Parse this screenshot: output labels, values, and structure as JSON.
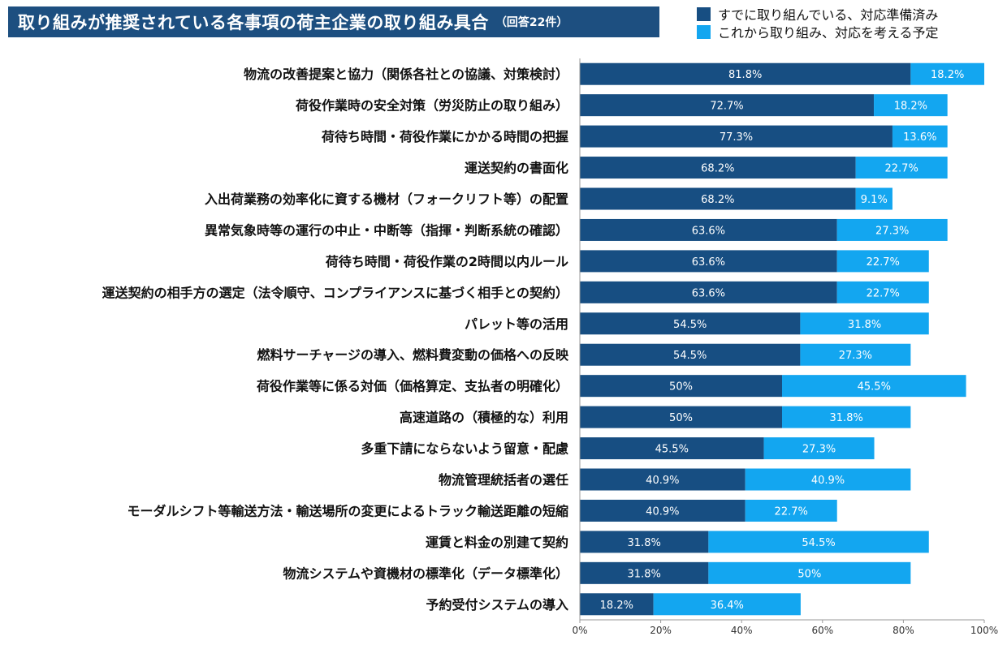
{
  "title": "取り組みが推奨されている各事項の荷主企業の取り組み具合",
  "subtitle": "（回答22件）",
  "colors": {
    "title_bg": "#1d4f80",
    "done": "#174e82",
    "planned": "#13a6f0",
    "axis": "#999999"
  },
  "legend": [
    {
      "label": "すでに取り組んでいる、対応準備済み",
      "color": "#174e82"
    },
    {
      "label": "これから取り組み、対応を考える予定",
      "color": "#13a6f0"
    }
  ],
  "chart_data": {
    "type": "bar",
    "orientation": "horizontal",
    "stacked": true,
    "categories": [
      "物流の改善提案と協力（関係各社との協議、対策検討）",
      "荷役作業時の安全対策（労災防止の取り組み）",
      "荷待ち時間・荷役作業にかかる時間の把握",
      "運送契約の書面化",
      "入出荷業務の効率化に資する機材（フォークリフト等）の配置",
      "異常気象時等の運行の中止・中断等（指揮・判断系統の確認）",
      "荷待ち時間・荷役作業の2時間以内ルール",
      "運送契約の相手方の選定（法令順守、コンプライアンスに基づく相手との契約）",
      "パレット等の活用",
      "燃料サーチャージの導入、燃料費変動の価格への反映",
      "荷役作業等に係る対価（価格算定、支払者の明確化）",
      "高速道路の（積極的な）利用",
      "多重下請にならないよう留意・配慮",
      "物流管理統括者の選任",
      "モーダルシフト等輸送方法・輸送場所の変更によるトラック輸送距離の短縮",
      "運賃と料金の別建て契約",
      "物流システムや資機材の標準化（データ標準化）",
      "予約受付システムの導入"
    ],
    "series": [
      {
        "name": "すでに取り組んでいる、対応準備済み",
        "values": [
          81.8,
          72.7,
          77.3,
          68.2,
          68.2,
          63.6,
          63.6,
          63.6,
          54.5,
          54.5,
          50,
          50,
          45.5,
          40.9,
          40.9,
          31.8,
          31.8,
          18.2
        ],
        "labels": [
          "81.8%",
          "72.7%",
          "77.3%",
          "68.2%",
          "68.2%",
          "63.6%",
          "63.6%",
          "63.6%",
          "54.5%",
          "54.5%",
          "50%",
          "50%",
          "45.5%",
          "40.9%",
          "40.9%",
          "31.8%",
          "31.8%",
          "18.2%"
        ]
      },
      {
        "name": "これから取り組み、対応を考える予定",
        "values": [
          18.2,
          18.2,
          13.6,
          22.7,
          9.1,
          27.3,
          22.7,
          22.7,
          31.8,
          27.3,
          45.5,
          31.8,
          27.3,
          40.9,
          22.7,
          54.5,
          50,
          36.4
        ],
        "labels": [
          "18.2%",
          "18.2%",
          "13.6%",
          "22.7%",
          "9.1%",
          "27.3%",
          "22.7%",
          "22.7%",
          "31.8%",
          "27.3%",
          "45.5%",
          "31.8%",
          "27.3%",
          "40.9%",
          "22.7%",
          "54.5%",
          "50%",
          "36.4%"
        ]
      }
    ],
    "xlim": [
      0,
      100
    ],
    "xticks": [
      "0%",
      "20%",
      "40%",
      "60%",
      "80%",
      "100%"
    ],
    "legend_position": "top-right",
    "grid": false
  }
}
